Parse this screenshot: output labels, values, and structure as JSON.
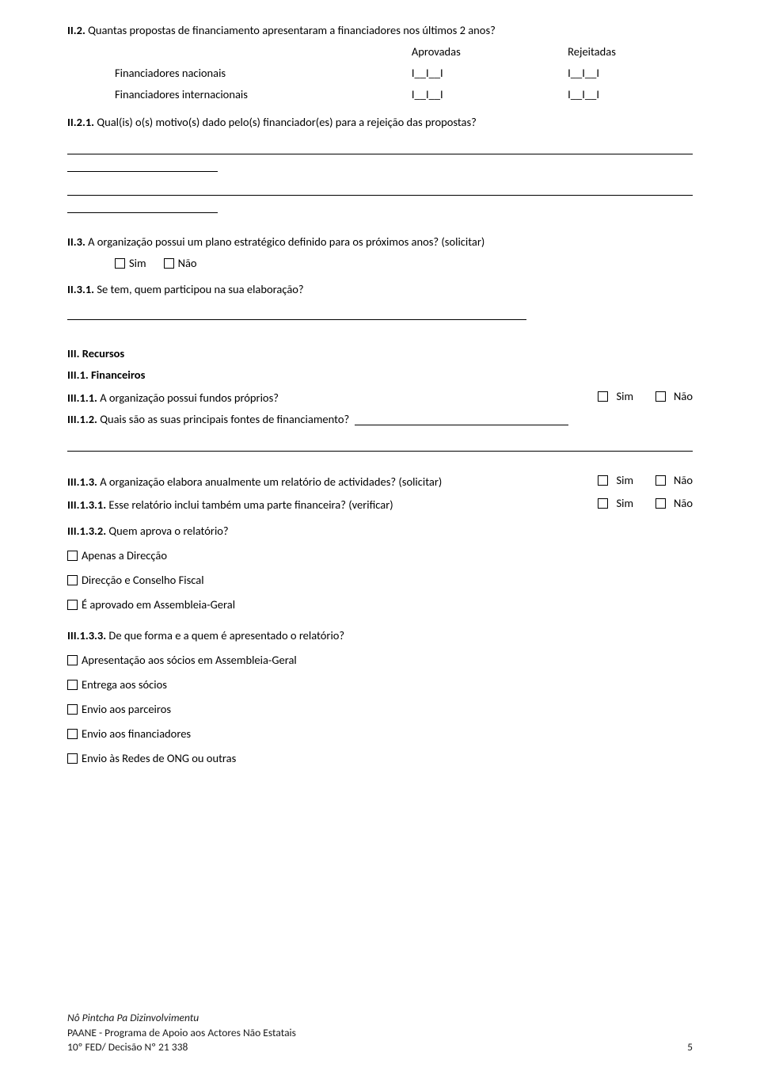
{
  "ii2": {
    "title": "II.2. Quantas propostas de financiamento apresentaram a financiadores nos últimos 2 anos?",
    "header_aprovadas": "Aprovadas",
    "header_rejeitadas": "Rejeitadas",
    "row1_label": "Financiadores nacionais",
    "row2_label": "Financiadores internacionais",
    "cell": "I__I__I"
  },
  "ii21": {
    "title": "II.2.1. Qual(is) o(s) motivo(s) dado pelo(s) financiador(es) para a rejeição das propostas?"
  },
  "ii3": {
    "title": "II.3. A organização possui um plano estratégico definido para os próximos anos? (solicitar)",
    "sim": "Sim",
    "nao": "Não"
  },
  "ii31": {
    "title": "II.3.1. Se tem, quem participou na sua elaboração?"
  },
  "iii": {
    "heading": "III. Recursos",
    "sub1": "III.1. Financeiros"
  },
  "iii11": {
    "title": "III.1.1. A organização possui fundos próprios?",
    "sim": "Sim",
    "nao": "Não"
  },
  "iii12": {
    "title": "III.1.2. Quais são as suas principais fontes de financiamento?"
  },
  "iii13": {
    "title": "III.1.3. A organização elabora anualmente um relatório de actividades? (solicitar)",
    "sim": "Sim",
    "nao": "Não"
  },
  "iii131": {
    "title": "III.1.3.1. Esse relatório inclui também uma parte financeira? (verificar)",
    "sim": "Sim",
    "nao": "Não"
  },
  "iii132": {
    "title": "III.1.3.2. Quem aprova o relatório?",
    "opt1": "Apenas a Direcção",
    "opt2": "Direcção e Conselho Fiscal",
    "opt3": "É aprovado em Assembleia-Geral"
  },
  "iii133": {
    "title": "III.1.3.3. De que forma e a quem é apresentado o relatório?",
    "opt1": "Apresentação aos sócios em Assembleia-Geral",
    "opt2": "Entrega aos sócios",
    "opt3": "Envio aos parceiros",
    "opt4": "Envio aos financiadores",
    "opt5": "Envio às Redes de ONG ou outras"
  },
  "footer": {
    "l1": "Nô Pintcha Pa Dizinvolvimentu",
    "l2": "PAANE - Programa de Apoio aos Actores Não Estatais",
    "l3": "10º FED/ Decisão Nº 21 338",
    "page": "5"
  }
}
